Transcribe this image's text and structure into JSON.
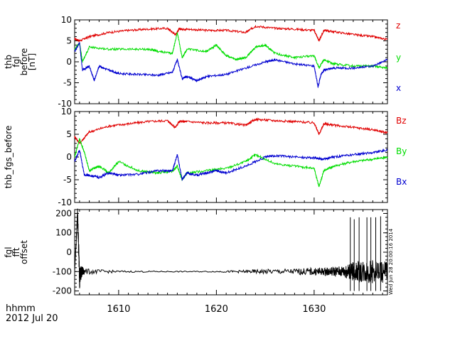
{
  "colors": {
    "red": "#e00000",
    "green": "#00dd00",
    "blue": "#0000d0",
    "black": "#000000"
  },
  "side_stamp": "Wed Jun 28 20:00:16 2014",
  "footer": {
    "unit": "hhmm",
    "date": "2012 Jul 20"
  },
  "chart_data": [
    {
      "type": "line",
      "ylabel": [
        "thb",
        "fgl",
        "before",
        "[nT]"
      ],
      "xlim": [
        1605.5,
        1637.5
      ],
      "ylim": [
        -10,
        10
      ],
      "yticks": [
        -10,
        -5,
        0,
        5,
        10
      ],
      "series": [
        {
          "name": "z",
          "color": "#e00000",
          "x": [
            1605.5,
            1606,
            1607,
            1609,
            1611,
            1613,
            1615,
            1615.8,
            1616.2,
            1617,
            1619,
            1621,
            1623,
            1624,
            1626,
            1628,
            1630,
            1630.5,
            1631,
            1632,
            1634,
            1636,
            1637.5
          ],
          "y": [
            5.5,
            5,
            6,
            7,
            7.5,
            7.8,
            8,
            6.5,
            7.8,
            7.8,
            7.5,
            7.5,
            7,
            8.5,
            8,
            7.8,
            7.5,
            5,
            7.5,
            7.2,
            6.5,
            6,
            5.3
          ]
        },
        {
          "name": "y",
          "color": "#00dd00",
          "x": [
            1605.5,
            1606,
            1606.3,
            1607,
            1609,
            1611,
            1613,
            1614,
            1615.5,
            1616,
            1616.5,
            1617,
            1619,
            1620,
            1621,
            1622,
            1623,
            1624,
            1625,
            1626,
            1628,
            1630,
            1630.5,
            1631,
            1632,
            1634,
            1636,
            1637.5
          ],
          "y": [
            3,
            4.5,
            0,
            3.5,
            3,
            3,
            3,
            2.5,
            2,
            7,
            1,
            3,
            2.5,
            4,
            1.5,
            0.5,
            1,
            3.5,
            4,
            2,
            1,
            1.5,
            -1.5,
            0.5,
            -0.5,
            -1,
            -1,
            -1.5
          ]
        },
        {
          "name": "x",
          "color": "#0000d0",
          "x": [
            1605.5,
            1606,
            1606.3,
            1607,
            1607.5,
            1608,
            1609,
            1610,
            1612,
            1614,
            1615.5,
            1616,
            1616.5,
            1617,
            1618,
            1619,
            1621,
            1623,
            1625,
            1626,
            1628,
            1630,
            1630.4,
            1630.7,
            1631,
            1632,
            1634,
            1636,
            1637.5
          ],
          "y": [
            2.5,
            4.5,
            -2,
            -1,
            -4.5,
            -1,
            -2,
            -2.8,
            -3,
            -3.2,
            -2.5,
            0.5,
            -4,
            -3.5,
            -4.5,
            -3.5,
            -3,
            -1.5,
            0,
            0.5,
            -0.5,
            -1,
            -6,
            -3,
            -2,
            -1.5,
            -1.5,
            -1,
            0.5
          ]
        }
      ]
    },
    {
      "type": "line",
      "ylabel": "thb_fgs_before",
      "xlim": [
        1605.5,
        1637.5
      ],
      "ylim": [
        -10,
        10
      ],
      "yticks": [
        -10,
        -5,
        0,
        5,
        10
      ],
      "series": [
        {
          "name": "Bz",
          "color": "#e00000",
          "x": [
            1605.5,
            1606,
            1607,
            1609,
            1611,
            1613,
            1615,
            1615.8,
            1616.2,
            1617,
            1619,
            1621,
            1623,
            1624,
            1626,
            1628,
            1630,
            1630.5,
            1631,
            1632,
            1634,
            1636,
            1637.5
          ],
          "y": [
            4.5,
            3,
            5.5,
            6.8,
            7.3,
            7.8,
            8,
            6.5,
            7.8,
            7.8,
            7.5,
            7.5,
            7,
            8.3,
            8,
            7.8,
            7.5,
            5,
            7.3,
            7,
            6.5,
            6,
            5.3
          ]
        },
        {
          "name": "By",
          "color": "#00dd00",
          "x": [
            1605.5,
            1606,
            1606.5,
            1607,
            1608,
            1609,
            1610,
            1612,
            1614,
            1615.5,
            1616,
            1616.5,
            1617,
            1619,
            1621,
            1623,
            1624,
            1626,
            1628,
            1630,
            1630.5,
            1631,
            1632,
            1634,
            1636,
            1637.5
          ],
          "y": [
            0,
            4,
            1,
            -3,
            -2,
            -3.5,
            -1,
            -3,
            -3.5,
            -3.2,
            -2,
            -5,
            -3.5,
            -3,
            -2.5,
            -1,
            0.5,
            -1.5,
            -2,
            -2.5,
            -6.5,
            -3,
            -2,
            -1,
            -0.5,
            0
          ]
        },
        {
          "name": "Bx",
          "color": "#0000d0",
          "x": [
            1605.5,
            1606,
            1606.5,
            1607,
            1608,
            1609,
            1610,
            1612,
            1614,
            1615.5,
            1616,
            1616.5,
            1617,
            1618,
            1619,
            1620,
            1621,
            1623,
            1625,
            1626,
            1628,
            1630,
            1631,
            1632,
            1634,
            1636,
            1637.5
          ],
          "y": [
            -1,
            1.5,
            -4,
            -4,
            -4.5,
            -3.5,
            -4,
            -3.8,
            -3,
            -3,
            0.5,
            -5,
            -3.5,
            -4,
            -3.5,
            -3,
            -3.5,
            -2,
            0,
            0.3,
            0,
            -0.2,
            -0.5,
            0,
            0.5,
            1,
            1.5
          ]
        }
      ]
    },
    {
      "type": "line",
      "ylabel": [
        "fgl",
        "fft",
        "offset"
      ],
      "xlim": [
        1605.5,
        1637.5
      ],
      "ylim": [
        -220,
        220
      ],
      "yticks": [
        -200,
        -100,
        0,
        100,
        200
      ],
      "series": [
        {
          "color": "#000000",
          "x": [
            1605.5,
            1605.8,
            1606,
            1606.2,
            1606.5,
            1610,
            1615,
            1620,
            1623,
            1625,
            1628,
            1630,
            1631,
            1632,
            1633,
            1633.5,
            1634,
            1635,
            1636,
            1637.5
          ],
          "y": [
            -100,
            200,
            -130,
            -100,
            -100,
            -100,
            -100,
            -100,
            -100,
            -100,
            -100,
            -100,
            -100,
            -100,
            -100,
            -100,
            -100,
            -100,
            -100,
            -100
          ],
          "noise": [
            5,
            40,
            60,
            30,
            15,
            5,
            3,
            3,
            8,
            12,
            15,
            20,
            20,
            25,
            30,
            40,
            50,
            60,
            60,
            60
          ]
        }
      ],
      "spikes": [
        {
          "x": 1633.7,
          "y": 180
        },
        {
          "x": 1634.1,
          "y": 170
        },
        {
          "x": 1634.6,
          "y": 180
        },
        {
          "x": 1635.4,
          "y": 180
        },
        {
          "x": 1635.8,
          "y": 180
        },
        {
          "x": 1636.3,
          "y": 180
        },
        {
          "x": 1636.8,
          "y": 185
        }
      ]
    }
  ],
  "xaxis": {
    "ticks": [
      1610,
      1620,
      1630
    ],
    "minor_step": 1
  }
}
